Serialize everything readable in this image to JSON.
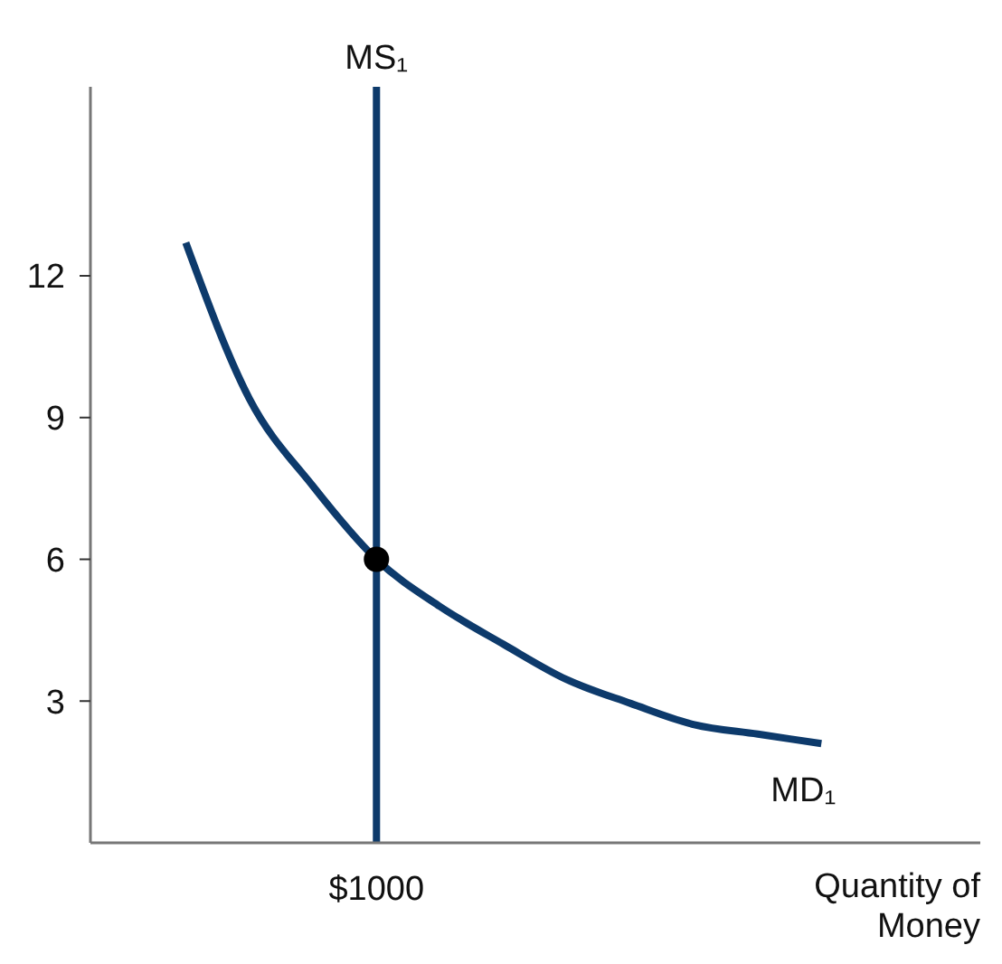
{
  "chart_data": {
    "type": "line",
    "xlabel": "Quantity of Money",
    "ylim": [
      0,
      16
    ],
    "yticks": [
      3,
      6,
      9,
      12
    ],
    "grid": false,
    "legend": false,
    "marker": "none",
    "line_style": "solid",
    "categories": [
      null,
      null,
      null,
      null,
      "$1000",
      null,
      null,
      null,
      null,
      null,
      null,
      null,
      null,
      null
    ],
    "ref_lines": [
      {
        "axis": "x",
        "value": "$1000",
        "label": "MS₁",
        "color": "#0d3a6b"
      }
    ],
    "series": [
      {
        "name": "MD₁",
        "color": "#0d3a6b",
        "values": [
          null,
          12.7,
          9.4,
          7.55,
          6,
          5.0,
          4.2,
          3.45,
          2.95,
          2.5,
          2.3,
          2.1,
          null,
          null
        ]
      },
      {
        "type": "scatter",
        "marker": "circle",
        "color": "#000000",
        "x": [
          "$1000"
        ],
        "values": [
          6
        ]
      }
    ]
  }
}
